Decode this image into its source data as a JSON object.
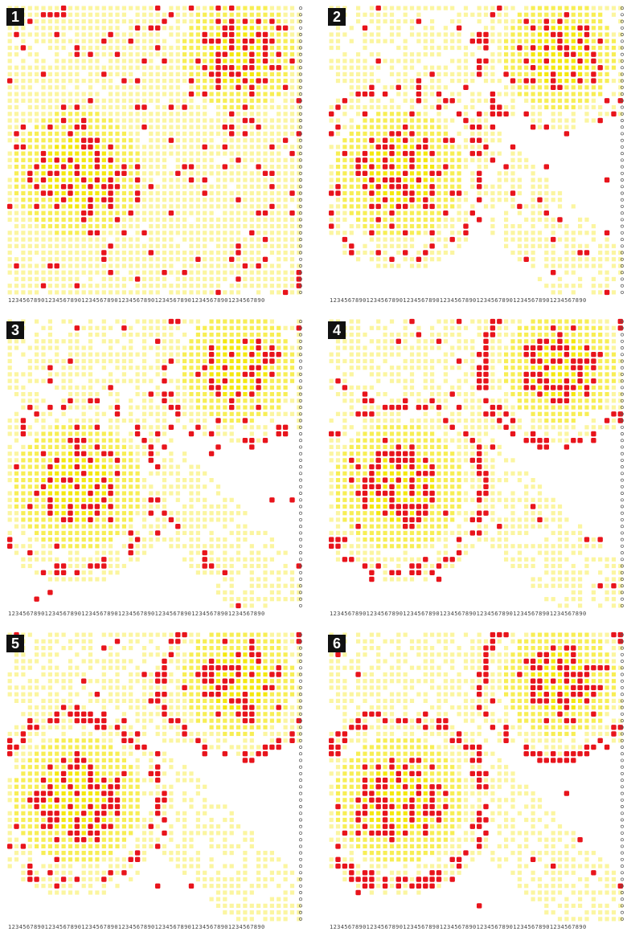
{
  "grid": {
    "rows": 44,
    "cols": 44
  },
  "colors": {
    "background": "#ffffff",
    "yellow_light": "#fbf5a0",
    "yellow_mid": "#f7ee55",
    "yellow_core": "#f4e80f",
    "dot_red": "#e8141c",
    "badge_bg": "#111111",
    "badge_text": "#ffffff"
  },
  "panels": [
    {
      "label": "1",
      "axis_text": "1234567890123456789012345678901234567890123456789012345678901234567890",
      "red_density": 0.26,
      "ring_strength": 0.0,
      "clutter": 1.0
    },
    {
      "label": "2",
      "axis_text": "1234567890123456789012345678901234567890123456789012345678901234567890",
      "red_density": 0.22,
      "ring_strength": 0.45,
      "clutter": 0.75
    },
    {
      "label": "3",
      "axis_text": "1234567890123456789012345678901234567890123456789012345678901234567890",
      "red_density": 0.18,
      "ring_strength": 0.6,
      "clutter": 0.55
    },
    {
      "label": "4",
      "axis_text": "1234567890123456789012345678901234567890123456789012345678901234567890",
      "red_density": 0.15,
      "ring_strength": 0.75,
      "clutter": 0.35
    },
    {
      "label": "5",
      "axis_text": "1234567890123456789012345678901234567890123456789012345678901234567890",
      "red_density": 0.13,
      "ring_strength": 0.85,
      "clutter": 0.25
    },
    {
      "label": "6",
      "axis_text": "1234567890123456789012345678901234567890123456789012345678901234567890",
      "red_density": 0.12,
      "ring_strength": 0.95,
      "clutter": 0.2
    }
  ]
}
